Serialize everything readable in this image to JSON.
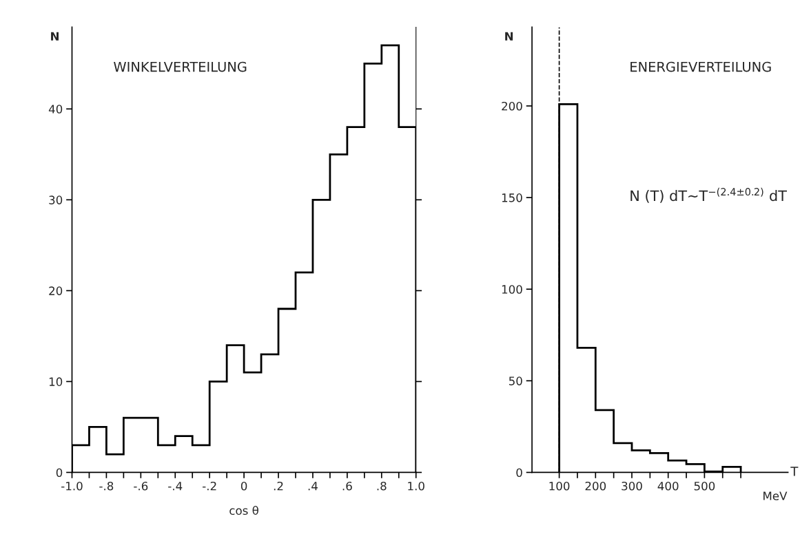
{
  "chart_data": [
    {
      "type": "histogram",
      "title": "WINKELVERTEILUNG",
      "xlabel": "cos θ",
      "ylabel": "N",
      "bins": [
        -1.0,
        -0.9,
        -0.8,
        -0.7,
        -0.6,
        -0.5,
        -0.4,
        -0.3,
        -0.2,
        -0.1,
        0.0,
        0.1,
        0.2,
        0.3,
        0.4,
        0.5,
        0.6,
        0.7,
        0.8,
        0.9,
        1.0
      ],
      "values": [
        3,
        5,
        2,
        6,
        6,
        3,
        4,
        3,
        10,
        14,
        11,
        13,
        18,
        22,
        30,
        35,
        38,
        45,
        47,
        38
      ],
      "color": "#000000",
      "xlim": [
        -1.0,
        1.0
      ],
      "ylim": [
        0,
        49
      ],
      "xticks": [
        {
          "value": -1.0,
          "label": "-1.0"
        },
        {
          "value": -0.9,
          "label": null
        },
        {
          "value": -0.8,
          "label": "-.8"
        },
        {
          "value": -0.7,
          "label": null
        },
        {
          "value": -0.6,
          "label": "-.6"
        },
        {
          "value": -0.5,
          "label": null
        },
        {
          "value": -0.4,
          "label": "-.4"
        },
        {
          "value": -0.3,
          "label": null
        },
        {
          "value": -0.2,
          "label": "-.2"
        },
        {
          "value": -0.1,
          "label": null
        },
        0,
        {
          "value": 0.1,
          "label": null
        },
        {
          "value": 0.2,
          "label": ".2"
        },
        {
          "value": 0.3,
          "label": null
        },
        {
          "value": 0.4,
          "label": ".4"
        },
        {
          "value": 0.5,
          "label": null
        },
        {
          "value": 0.6,
          "label": ".6"
        },
        {
          "value": 0.7,
          "label": null
        },
        {
          "value": 0.8,
          "label": ".8"
        },
        {
          "value": 0.9,
          "label": null
        },
        {
          "value": 1.0,
          "label": "1.0"
        }
      ],
      "yticks": [
        0,
        10,
        20,
        30,
        40
      ],
      "grid": false
    },
    {
      "type": "histogram",
      "title": "ENERGIEVERTEILUNG",
      "xlabel": "T",
      "ylabel": "N",
      "bins": [
        100,
        150,
        200,
        250,
        300,
        350,
        400,
        450,
        500,
        550,
        600
      ],
      "values": [
        201,
        68,
        34,
        16,
        12,
        10.5,
        6.5,
        4.5,
        0.5,
        3
      ],
      "color": "#000000",
      "xlim": [
        25,
        730
      ],
      "ylim": [
        0,
        243
      ],
      "xticks": [
        100,
        {
          "value": 150,
          "label": null
        },
        200,
        {
          "value": 250,
          "label": null
        },
        300,
        {
          "value": 350,
          "label": null
        },
        400,
        {
          "value": 450,
          "label": null
        },
        500,
        {
          "value": 550,
          "label": null
        },
        {
          "value": 600,
          "label": null
        }
      ],
      "yticks": [
        0,
        50,
        100,
        150,
        200
      ],
      "grid": false,
      "ref_lines": [
        {
          "axis": "x",
          "value": 100,
          "color": "#000000",
          "line_style": "dashed"
        }
      ],
      "annotations": [
        "N (T) dT∼T$^{−(2.4±0.2)}$ dT",
        "MeV"
      ]
    }
  ]
}
